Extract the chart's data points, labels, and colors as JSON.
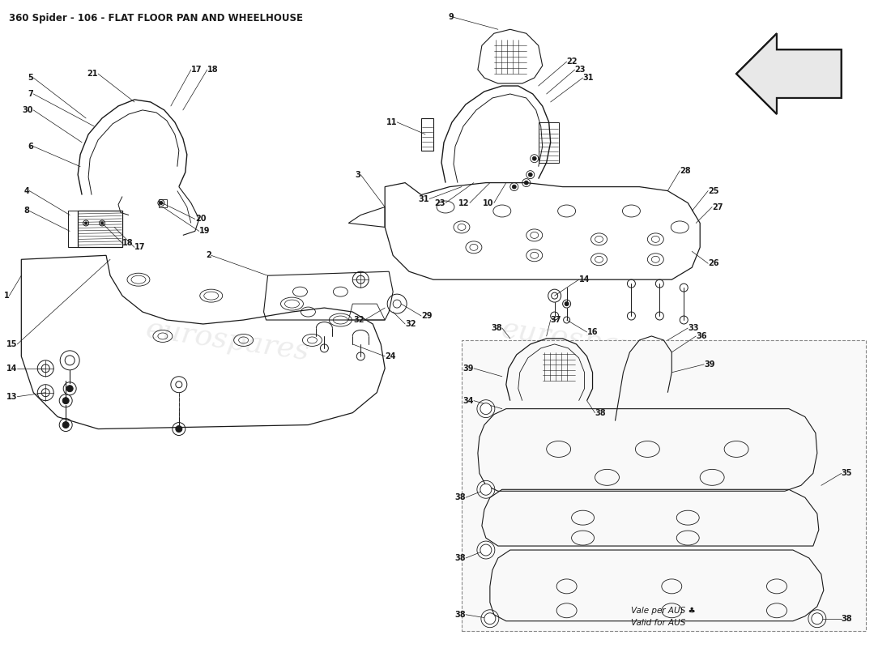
{
  "title": "360 Spider - 106 - FLAT FLOOR PAN AND WHEELHOUSE",
  "title_fontsize": 8.5,
  "title_color": "#1a1a1a",
  "background_color": "#ffffff",
  "line_color": "#1a1a1a",
  "watermark_text": "eurospares",
  "watermark_color": "#d0d0d0",
  "watermark_alpha": 0.38,
  "aus_box_text1": "Vale per AUS ♣",
  "aus_box_text2": "Valid for AUS",
  "label_fontsize": 7.0,
  "label_bold_fontsize": 8.5
}
